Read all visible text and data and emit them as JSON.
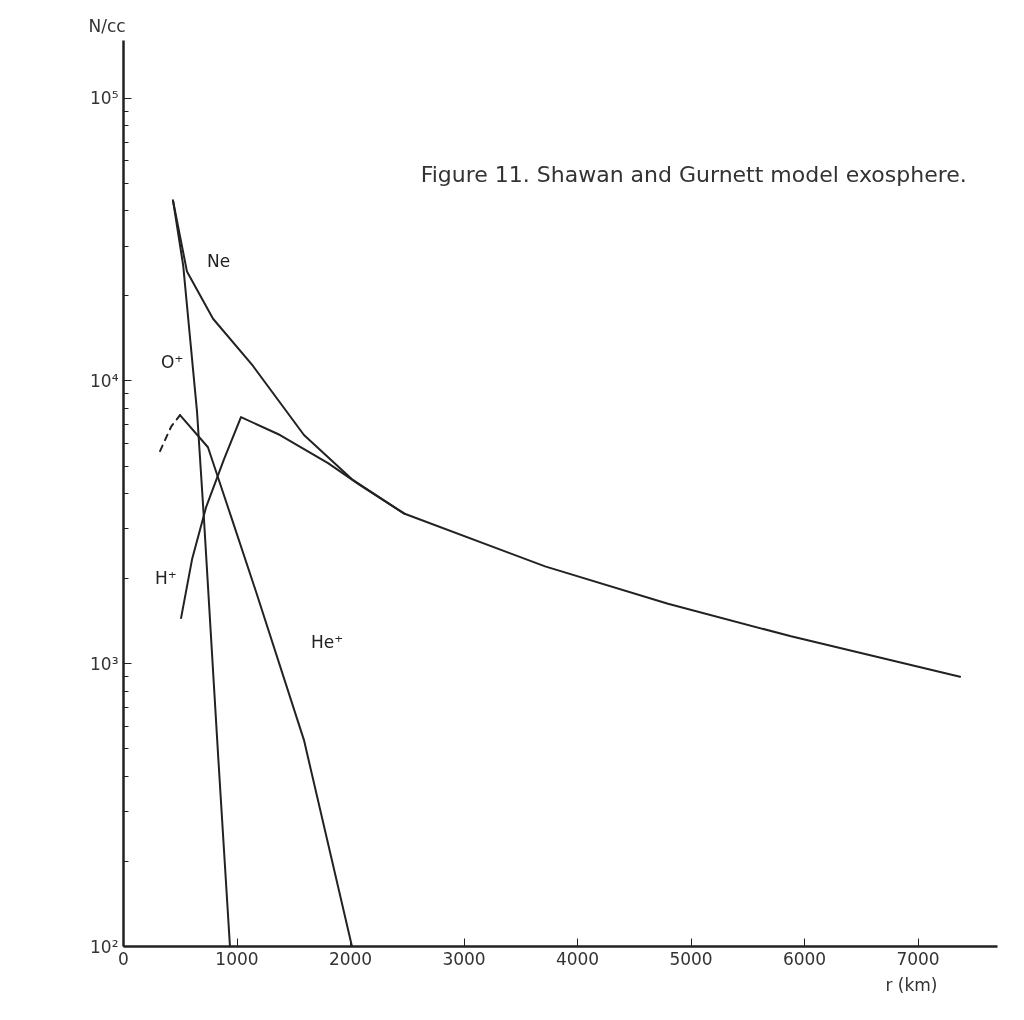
{
  "chart_data": {
    "type": "line",
    "title": "Figure 11. Shawan and Gurnett model exosphere.",
    "xlabel": "r (km)",
    "ylabel": "N/cc",
    "log": "y",
    "grid": false,
    "xlim": [
      0,
      7700
    ],
    "ylim": [
      100,
      160000
    ],
    "xticks": [
      0,
      1000,
      2000,
      3000,
      4000,
      5000,
      6000,
      7000
    ],
    "yticks": [
      {
        "value": 100,
        "label": "10²"
      },
      {
        "value": 200,
        "label": null
      },
      {
        "value": 300,
        "label": null
      },
      {
        "value": 400,
        "label": null
      },
      {
        "value": 500,
        "label": null
      },
      {
        "value": 600,
        "label": null
      },
      {
        "value": 700,
        "label": null
      },
      {
        "value": 800,
        "label": null
      },
      {
        "value": 900,
        "label": null
      },
      {
        "value": 1000,
        "label": "10³"
      },
      {
        "value": 2000,
        "label": null
      },
      {
        "value": 3000,
        "label": null
      },
      {
        "value": 4000,
        "label": null
      },
      {
        "value": 5000,
        "label": null
      },
      {
        "value": 6000,
        "label": null
      },
      {
        "value": 7000,
        "label": null
      },
      {
        "value": 8000,
        "label": null
      },
      {
        "value": 9000,
        "label": null
      },
      {
        "value": 10000,
        "label": "10⁴"
      },
      {
        "value": 20000,
        "label": null
      },
      {
        "value": 30000,
        "label": null
      },
      {
        "value": 40000,
        "label": null
      },
      {
        "value": 50000,
        "label": null
      },
      {
        "value": 60000,
        "label": null
      },
      {
        "value": 70000,
        "label": null
      },
      {
        "value": 80000,
        "label": null
      },
      {
        "value": 90000,
        "label": null
      },
      {
        "value": 100000,
        "label": "10⁵"
      }
    ],
    "series": [
      {
        "name": "Ne",
        "color": "#222222",
        "x": [
          436,
          559,
          789,
          1141,
          1590,
          2013,
          2471,
          3714,
          4797,
          5881,
          7370
        ],
        "values": [
          43500,
          24400,
          16600,
          11300,
          6440,
          4490,
          3400,
          2210,
          1630,
          1250,
          900
        ]
      },
      {
        "name": "O⁺",
        "color": "#222222",
        "x": [
          436,
          526,
          648,
          709,
          836,
          938
        ],
        "values": [
          43500,
          25600,
          7770,
          3240,
          457,
          100
        ]
      },
      {
        "name": "H⁺",
        "color": "#222222",
        "x": [
          507,
          604,
          727,
          885,
          1035,
          1379,
          1802,
          2084,
          2471
        ],
        "values": [
          1450,
          2340,
          3570,
          5280,
          7450,
          6440,
          5120,
          4280,
          3400
        ]
      },
      {
        "name": "He⁺",
        "color": "#222222",
        "x": [
          498,
          744,
          956,
          1167,
          1590,
          2013
        ],
        "values": [
          7570,
          5830,
          3240,
          1800,
          537,
          100
        ]
      },
      {
        "color": "#222222",
        "line_style": "dashed",
        "x": [
          322,
          420,
          498
        ],
        "values": [
          5650,
          6900,
          7570
        ]
      }
    ]
  }
}
